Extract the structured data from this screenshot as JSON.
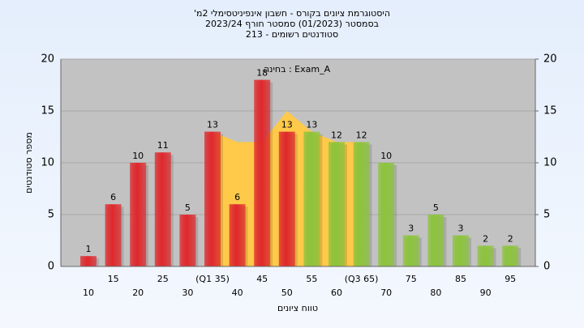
{
  "chart_data": {
    "type": "bar",
    "title": "היסטוגרמת ציונים בקורס - חשבון אינפיניטסימלי 2מ'",
    "subtitle": "בסמסטר  (01/2023)  סמסטר חורף 2023/24",
    "subtitle2": "סטודנטים רשומים - 213",
    "annotation": "בחינה : Exam_A",
    "x_label": "טווח ציונים",
    "y_label": "מספר סטודנטים",
    "categories": [
      "10",
      "15",
      "20",
      "25",
      "30",
      "(Q1 35)",
      "40",
      "45",
      "50",
      "55",
      "60",
      "(Q3 65)",
      "70",
      "75",
      "80",
      "85",
      "90",
      "95"
    ],
    "series": [
      {
        "color": "#e0282c",
        "values": [
          1,
          6,
          10,
          11,
          5,
          13,
          6,
          18,
          13,
          null,
          null,
          null,
          null,
          null,
          null,
          null,
          null,
          null
        ]
      },
      {
        "color": "#8cc43c",
        "values": [
          null,
          null,
          null,
          null,
          null,
          null,
          null,
          null,
          null,
          13,
          12,
          12,
          10,
          3,
          5,
          3,
          2,
          2
        ]
      }
    ],
    "quartile_area": {
      "color": "#ffc94a",
      "values": [
        null,
        null,
        null,
        null,
        null,
        13,
        12,
        12,
        15,
        13,
        12,
        12,
        null,
        null,
        null,
        null,
        null,
        null
      ]
    },
    "ylim": [
      0,
      20
    ],
    "yticks": [
      0,
      5,
      10,
      15,
      20
    ],
    "y2lim": [
      0,
      20
    ],
    "y2ticks": [
      0,
      5,
      10,
      15,
      20
    ],
    "grid": true
  }
}
